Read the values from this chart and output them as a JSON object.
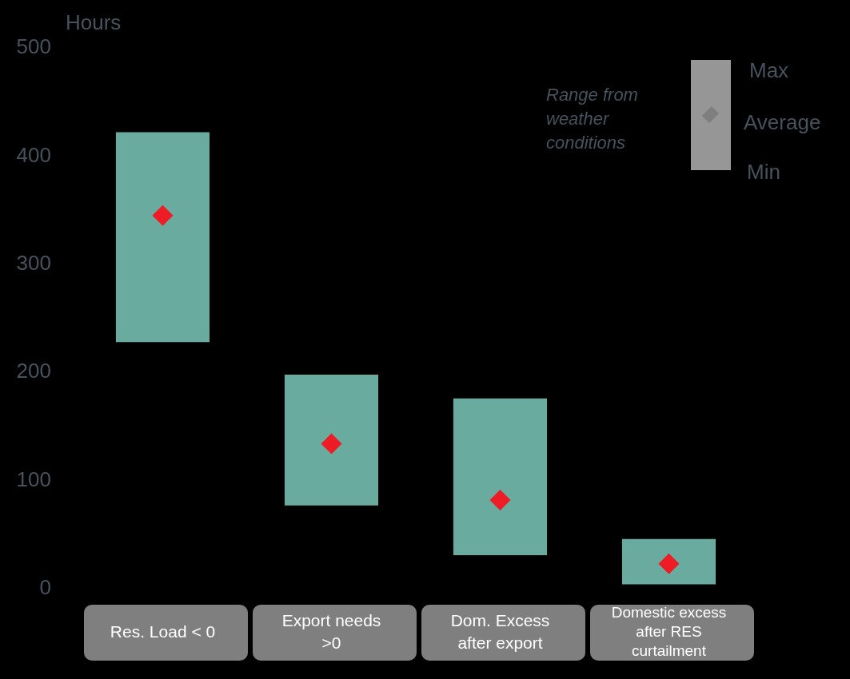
{
  "chart_data": {
    "type": "bar",
    "ylabel": "Hours",
    "categories": [
      "Res. Load < 0",
      "Export needs >0",
      "Dom. Excess after export",
      "Domestic excess after RES curtailment"
    ],
    "series": [
      {
        "color": "#6aaba0",
        "base": [
          228,
          77,
          31,
          4
        ],
        "values": [
          194,
          121,
          145,
          42
        ]
      },
      {
        "type": "scatter",
        "color": "#ee1c25",
        "marker": "diamond",
        "x": [
          "Res. Load < 0",
          "Export needs >0",
          "Dom. Excess after export",
          "Domestic excess after RES curtailment"
        ],
        "values": [
          345,
          134,
          82,
          23
        ]
      }
    ],
    "ylim": [
      0,
      500
    ],
    "yticks": [
      0,
      100,
      200,
      300,
      400,
      500
    ],
    "grid": false,
    "legend": false,
    "annotations": [
      "Range from weather conditions",
      "Max",
      "Average",
      "Min"
    ]
  }
}
